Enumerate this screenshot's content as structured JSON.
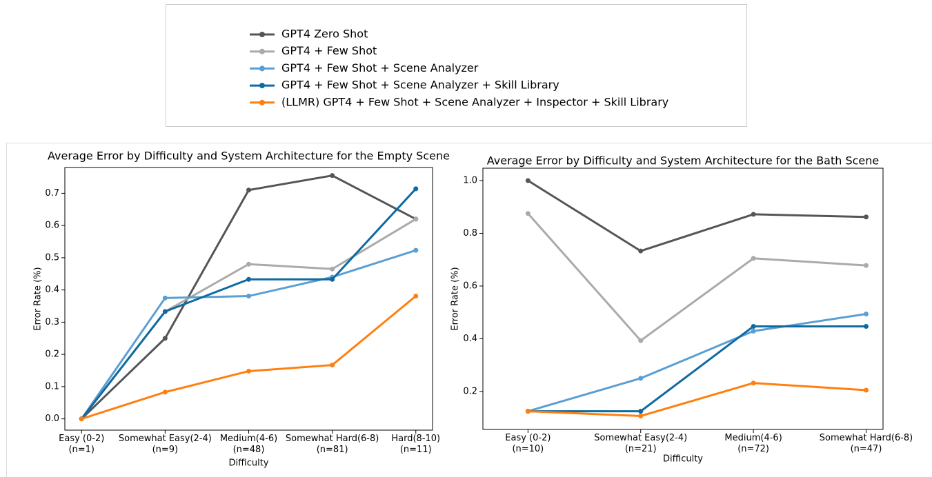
{
  "chart_data": [
    {
      "type": "line",
      "title": "Average Error by Difficulty and System Architecture for the Empty Scene",
      "xlabel": "Difficulty",
      "ylabel": "Error Rate (%)",
      "categories": [
        "Easy (0-2)\n(n=1)",
        "Somewhat Easy(2-4)\n(n=9)",
        "Medium(4-6)\n(n=48)",
        "Somewhat Hard(6-8)\n(n=81)",
        "Hard(8-10)\n(n=11)"
      ],
      "ylim": [
        -0.035,
        0.78
      ],
      "yticks": [
        {
          "value": 0,
          "label": "0.0"
        },
        0.1,
        0.2,
        0.3,
        0.4,
        0.5,
        0.6,
        0.7
      ],
      "grid": false,
      "series": [
        {
          "name": "GPT4 Zero Shot",
          "color": "#555555",
          "values": [
            0,
            0.25,
            0.71,
            0.755,
            0.62
          ]
        },
        {
          "name": "GPT4 + Few Shot",
          "color": "#aaaaaa",
          "values": [
            0,
            0.333,
            0.48,
            0.465,
            0.62
          ]
        },
        {
          "name": "GPT4 + Few Shot + Scene Analyzer",
          "color": "#5a9fd4",
          "values": [
            0,
            0.375,
            0.381,
            0.44,
            0.523
          ]
        },
        {
          "name": "GPT4 + Few Shot + Scene Analyzer + Skill Library",
          "color": "#0e6aa0",
          "values": [
            0,
            0.333,
            0.433,
            0.433,
            0.714
          ]
        },
        {
          "name": "(LLMR)  GPT4 + Few Shot + Scene Analyzer + Inspector + Skill Library",
          "color": "#ff7f0e",
          "values": [
            0,
            0.083,
            0.148,
            0.167,
            0.381
          ]
        }
      ]
    },
    {
      "type": "line",
      "title": "Average Error by Difficulty and System Architecture for the Bath Scene",
      "xlabel": "Difficulty",
      "ylabel": "Error Rate (%)",
      "categories": [
        "Easy (0-2)\n(n=10)",
        "Somewhat Easy(2-4)\n(n=21)",
        "Medium(4-6)\n(n=72)",
        "Somewhat Hard(6-8)\n(n=47)"
      ],
      "ylim": [
        0.056,
        1.047
      ],
      "yticks": [
        0.2,
        0.4,
        0.6,
        0.8,
        {
          "value": 1,
          "label": "1.0"
        }
      ],
      "grid": false,
      "series": [
        {
          "name": "GPT4 Zero Shot",
          "color": "#555555",
          "values": [
            1.0,
            0.733,
            0.872,
            0.862
          ]
        },
        {
          "name": "GPT4 + Few Shot",
          "color": "#aaaaaa",
          "values": [
            0.875,
            0.393,
            0.705,
            0.678
          ]
        },
        {
          "name": "GPT4 + Few Shot + Scene Analyzer",
          "color": "#5a9fd4",
          "values": [
            0.125,
            0.25,
            0.429,
            0.494
          ]
        },
        {
          "name": "GPT4 + Few Shot + Scene Analyzer + Skill Library",
          "color": "#0e6aa0",
          "values": [
            0.125,
            0.125,
            0.447,
            0.447
          ]
        },
        {
          "name": "(LLMR)  GPT4 + Few Shot + Scene Analyzer + Inspector + Skill Library",
          "color": "#ff7f0e",
          "values": [
            0.125,
            0.107,
            0.232,
            0.205
          ]
        }
      ]
    }
  ]
}
